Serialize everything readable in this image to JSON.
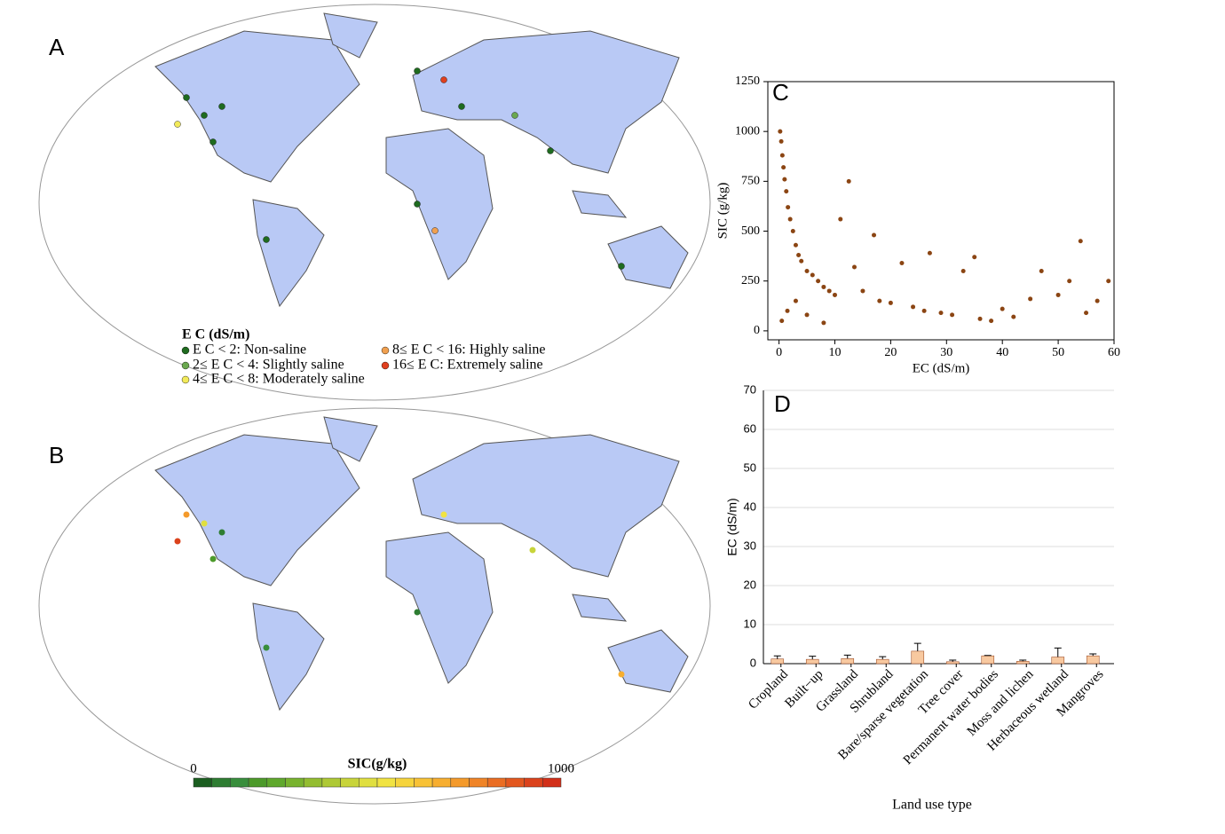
{
  "panel_labels": [
    "A",
    "B",
    "C",
    "D"
  ],
  "map_a": {
    "legend_title": "E C (dS/m)",
    "legend": [
      {
        "label": "E C < 2: Non-saline",
        "color": "#1f6b1f"
      },
      {
        "label": "2≤ E C < 4: Slightly saline",
        "color": "#6aa84f"
      },
      {
        "label": "4≤ E C < 8: Moderately saline",
        "color": "#f2ea5a"
      },
      {
        "label": "8≤ E C < 16: Highly saline",
        "color": "#f0a050"
      },
      {
        "label": "16≤ E C: Extremely saline",
        "color": "#e0401f"
      }
    ]
  },
  "map_b": {
    "colorbar_title": "SIC(g/kg)",
    "colorbar_ticks": [
      0,
      1000
    ],
    "colors": [
      "#1b5e20",
      "#2e7d32",
      "#388e3c",
      "#4c9a2a",
      "#5fa82c",
      "#78b32e",
      "#93bd30",
      "#aec935",
      "#c8d43a",
      "#e0df40",
      "#f1e342",
      "#f6d43c",
      "#f8c236",
      "#f7ae30",
      "#f49a2b",
      "#f08427",
      "#ea6d23",
      "#e3571f",
      "#db421c",
      "#d22f19"
    ]
  },
  "chart_data": [
    {
      "type": "scatter",
      "x_label": "EC (dS/m)",
      "y_label": "SIC (g/kg)",
      "color": "#8b4513",
      "x": [
        0.2,
        0.4,
        0.6,
        0.8,
        1.0,
        1.3,
        1.6,
        2.0,
        2.5,
        3.0,
        3.5,
        4.0,
        5.0,
        6.0,
        7.0,
        8.0,
        9.0,
        10.0,
        11.0,
        12.5,
        13.5,
        15.0,
        17.0,
        18.0,
        20.0,
        22.0,
        24.0,
        26.0,
        27.0,
        29.0,
        31.0,
        33.0,
        35.0,
        36.0,
        38.0,
        40.0,
        42.0,
        45.0,
        47.0,
        50.0,
        52.0,
        54.0,
        55.0,
        57.0,
        59.0,
        0.5,
        1.5,
        3.0,
        5.0,
        8.0
      ],
      "values": [
        1000,
        950,
        880,
        820,
        760,
        700,
        620,
        560,
        500,
        430,
        380,
        350,
        300,
        280,
        250,
        220,
        200,
        180,
        560,
        750,
        320,
        200,
        480,
        150,
        140,
        340,
        120,
        100,
        390,
        90,
        80,
        300,
        370,
        60,
        50,
        110,
        70,
        160,
        300,
        180,
        250,
        450,
        90,
        150,
        250,
        50,
        100,
        150,
        80,
        40
      ],
      "xlim": [
        -2,
        60
      ],
      "ylim": [
        -45,
        1250
      ],
      "xticks": [
        0,
        10,
        20,
        30,
        40,
        50,
        60
      ],
      "yticks": [
        0,
        250,
        500,
        750,
        1000,
        1250
      ]
    },
    {
      "type": "bar",
      "x_label": "Land use type",
      "y_label": "EC (dS/m)",
      "color": "#f8c9a0",
      "categories": [
        "Cropland",
        "Built−up",
        "Grassland",
        "Shrubland",
        "Bare/sparse vegetation",
        "Tree cover",
        "Permanent water bodies",
        "Moss and lichen",
        "Herbaceous wetland",
        "Mangroves"
      ],
      "values": [
        1.2,
        1.1,
        1.3,
        1.1,
        3.2,
        0.5,
        2.0,
        0.6,
        1.7,
        2.0
      ],
      "errors": [
        0.8,
        0.8,
        0.9,
        0.7,
        2.0,
        0.4,
        0.1,
        0.3,
        2.3,
        0.5
      ],
      "ylim": [
        0,
        70
      ],
      "yticks": [
        0,
        10,
        20,
        30,
        40,
        50,
        60,
        70
      ],
      "grid": true
    }
  ]
}
